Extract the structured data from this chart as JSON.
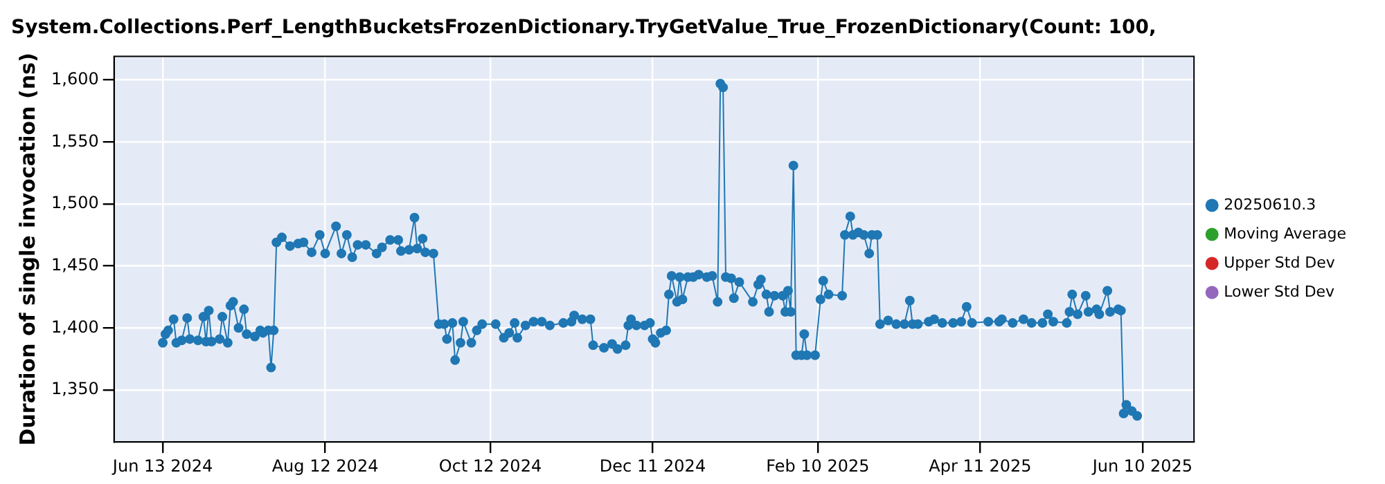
{
  "chart_data": {
    "type": "line",
    "title": "System.Collections.Perf_LengthBucketsFrozenDictionary.TryGetValue_True_FrozenDictionary(Count: 100,",
    "ylabel": "Duration of single invocation (ns)",
    "x": [
      "2024-06-13",
      "2024-06-14",
      "2024-06-15",
      "2024-06-17",
      "2024-06-18",
      "2024-06-20",
      "2024-06-22",
      "2024-06-23",
      "2024-06-26",
      "2024-06-28",
      "2024-06-29",
      "2024-06-30",
      "2024-07-01",
      "2024-07-04",
      "2024-07-05",
      "2024-07-07",
      "2024-07-08",
      "2024-07-09",
      "2024-07-11",
      "2024-07-13",
      "2024-07-14",
      "2024-07-17",
      "2024-07-19",
      "2024-07-20",
      "2024-07-22",
      "2024-07-23",
      "2024-07-24",
      "2024-07-25",
      "2024-07-27",
      "2024-07-30",
      "2024-08-02",
      "2024-08-04",
      "2024-08-07",
      "2024-08-10",
      "2024-08-12",
      "2024-08-16",
      "2024-08-18",
      "2024-08-20",
      "2024-08-22",
      "2024-08-24",
      "2024-08-27",
      "2024-08-31",
      "2024-09-02",
      "2024-09-05",
      "2024-09-08",
      "2024-09-09",
      "2024-09-12",
      "2024-09-14",
      "2024-09-15",
      "2024-09-17",
      "2024-09-18",
      "2024-09-21",
      "2024-09-23",
      "2024-09-25",
      "2024-09-26",
      "2024-09-28",
      "2024-09-29",
      "2024-10-01",
      "2024-10-02",
      "2024-10-05",
      "2024-10-07",
      "2024-10-09",
      "2024-10-14",
      "2024-10-17",
      "2024-10-19",
      "2024-10-21",
      "2024-10-22",
      "2024-10-25",
      "2024-10-28",
      "2024-10-31",
      "2024-11-03",
      "2024-11-08",
      "2024-11-11",
      "2024-11-12",
      "2024-11-15",
      "2024-11-18",
      "2024-11-19",
      "2024-11-23",
      "2024-11-26",
      "2024-11-28",
      "2024-12-01",
      "2024-12-02",
      "2024-12-03",
      "2024-12-05",
      "2024-12-08",
      "2024-12-10",
      "2024-12-11",
      "2024-12-12",
      "2024-12-14",
      "2024-12-16",
      "2024-12-17",
      "2024-12-18",
      "2024-12-20",
      "2024-12-21",
      "2024-12-22",
      "2024-12-24",
      "2024-12-26",
      "2024-12-28",
      "2024-12-31",
      "2025-01-02",
      "2025-01-04",
      "2025-01-05",
      "2025-01-06",
      "2025-01-07",
      "2025-01-09",
      "2025-01-10",
      "2025-01-12",
      "2025-01-17",
      "2025-01-19",
      "2025-01-20",
      "2025-01-22",
      "2025-01-23",
      "2025-01-25",
      "2025-01-28",
      "2025-01-29",
      "2025-01-30",
      "2025-01-31",
      "2025-02-01",
      "2025-02-02",
      "2025-02-04",
      "2025-02-05",
      "2025-02-06",
      "2025-02-09",
      "2025-02-11",
      "2025-02-12",
      "2025-02-14",
      "2025-02-19",
      "2025-02-20",
      "2025-02-22",
      "2025-02-23",
      "2025-02-25",
      "2025-02-27",
      "2025-03-01",
      "2025-03-02",
      "2025-03-04",
      "2025-03-05",
      "2025-03-08",
      "2025-03-11",
      "2025-03-14",
      "2025-03-16",
      "2025-03-17",
      "2025-03-19",
      "2025-03-23",
      "2025-03-25",
      "2025-03-28",
      "2025-04-01",
      "2025-04-04",
      "2025-04-06",
      "2025-04-08",
      "2025-04-14",
      "2025-04-18",
      "2025-04-19",
      "2025-04-23",
      "2025-04-27",
      "2025-04-30",
      "2025-05-04",
      "2025-05-06",
      "2025-05-08",
      "2025-05-13",
      "2025-05-14",
      "2025-05-15",
      "2025-05-17",
      "2025-05-20",
      "2025-05-21",
      "2025-05-24",
      "2025-05-25",
      "2025-05-28",
      "2025-05-29",
      "2025-06-01",
      "2025-06-02",
      "2025-06-03",
      "2025-06-04",
      "2025-06-06",
      "2025-06-08"
    ],
    "series": [
      {
        "name": "20250610.3",
        "color": "#1f77b4",
        "values": [
          1388,
          1395,
          1398,
          1407,
          1388,
          1390,
          1408,
          1391,
          1390,
          1409,
          1389,
          1414,
          1389,
          1391,
          1409,
          1388,
          1418,
          1421,
          1400,
          1415,
          1395,
          1393,
          1398,
          1396,
          1398,
          1368,
          1398,
          1469,
          1473,
          1466,
          1468,
          1469,
          1461,
          1475,
          1460,
          1482,
          1460,
          1475,
          1457,
          1467,
          1467,
          1460,
          1465,
          1471,
          1471,
          1462,
          1463,
          1489,
          1464,
          1472,
          1461,
          1460,
          1403,
          1403,
          1391,
          1404,
          1374,
          1388,
          1405,
          1388,
          1398,
          1403,
          1403,
          1392,
          1396,
          1404,
          1392,
          1402,
          1405,
          1405,
          1402,
          1404,
          1405,
          1410,
          1407,
          1407,
          1386,
          1384,
          1387,
          1383,
          1386,
          1402,
          1407,
          1402,
          1402,
          1404,
          1391,
          1388,
          1396,
          1398,
          1427,
          1442,
          1421,
          1441,
          1423,
          1441,
          1441,
          1443,
          1441,
          1442,
          1421,
          1597,
          1594,
          1441,
          1440,
          1424,
          1437,
          1421,
          1435,
          1439,
          1427,
          1413,
          1426,
          1426,
          1413,
          1430,
          1413,
          1531,
          1378,
          1378,
          1395,
          1378,
          1378,
          1423,
          1438,
          1427,
          1426,
          1475,
          1490,
          1475,
          1477,
          1475,
          1460,
          1475,
          1475,
          1403,
          1406,
          1403,
          1403,
          1422,
          1403,
          1403,
          1405,
          1407,
          1404,
          1404,
          1405,
          1417,
          1404,
          1405,
          1405,
          1407,
          1404,
          1407,
          1404,
          1404,
          1411,
          1405,
          1404,
          1413,
          1427,
          1411,
          1426,
          1413,
          1415,
          1411,
          1430,
          1413,
          1415,
          1414,
          1331,
          1338,
          1333,
          1329
        ]
      },
      {
        "name": "Moving Average",
        "color": "#2ca02c",
        "values": [
          null,
          null,
          null,
          null,
          null,
          null,
          null,
          null,
          null,
          null,
          null,
          null,
          null,
          null,
          null,
          null,
          null,
          null,
          null,
          null,
          null,
          null,
          null,
          null,
          null,
          null,
          null,
          null,
          null,
          null,
          null,
          null,
          null,
          null,
          null,
          null,
          null,
          null,
          null,
          null,
          null,
          null,
          null,
          null,
          null,
          null,
          null,
          null,
          null,
          null,
          null,
          null,
          null,
          null,
          null,
          null,
          null,
          null,
          null,
          null,
          null,
          null,
          null,
          null,
          null,
          null,
          null,
          null,
          null,
          null,
          null,
          null,
          null,
          null,
          null,
          null,
          null,
          null,
          null,
          null,
          null,
          null,
          null,
          null,
          null,
          null,
          null,
          null,
          null,
          null,
          null,
          null,
          null,
          null,
          null,
          null,
          null,
          null,
          null,
          null,
          null,
          null,
          null,
          null,
          null,
          null,
          null,
          null,
          null,
          null,
          null,
          null,
          null,
          null,
          null,
          null,
          null,
          null,
          null,
          null,
          null,
          null,
          null,
          null,
          null,
          null,
          null,
          null,
          null,
          null,
          null,
          null,
          null,
          null,
          null,
          null,
          null,
          null,
          null,
          null,
          null,
          null,
          null,
          null,
          null,
          null,
          null,
          null,
          null,
          null,
          null,
          null,
          null,
          null,
          null,
          null,
          null,
          null,
          null,
          null,
          null,
          null,
          null,
          null,
          null,
          null,
          null,
          null,
          null,
          null,
          null,
          null,
          null,
          null
        ]
      },
      {
        "name": "Upper Std Dev",
        "color": "#d62728",
        "values": [
          null,
          null,
          null,
          null,
          null,
          null,
          null,
          null,
          null,
          null,
          null,
          null,
          null,
          null,
          null,
          null,
          null,
          null,
          null,
          null,
          null,
          null,
          null,
          null,
          null,
          null,
          null,
          null,
          null,
          null,
          null,
          null,
          null,
          null,
          null,
          null,
          null,
          null,
          null,
          null,
          null,
          null,
          null,
          null,
          null,
          null,
          null,
          null,
          null,
          null,
          null,
          null,
          null,
          null,
          null,
          null,
          null,
          null,
          null,
          null,
          null,
          null,
          null,
          null,
          null,
          null,
          null,
          null,
          null,
          null,
          null,
          null,
          null,
          null,
          null,
          null,
          null,
          null,
          null,
          null,
          null,
          null,
          null,
          null,
          null,
          null,
          null,
          null,
          null,
          null,
          null,
          null,
          null,
          null,
          null,
          null,
          null,
          null,
          null,
          null,
          null,
          null,
          null,
          null,
          null,
          null,
          null,
          null,
          null,
          null,
          null,
          null,
          null,
          null,
          null,
          null,
          null,
          null,
          null,
          null,
          null,
          null,
          null,
          null,
          null,
          null,
          null,
          null,
          null,
          null,
          null,
          null,
          null,
          null,
          null,
          null,
          null,
          null,
          null,
          null,
          null,
          null,
          null,
          null,
          null,
          null,
          null,
          null,
          null,
          null,
          null,
          null,
          null,
          null,
          null,
          null,
          null,
          null,
          null,
          null,
          null,
          null,
          null,
          null,
          null,
          null,
          null,
          null,
          null,
          null,
          null,
          null,
          null,
          null
        ]
      },
      {
        "name": "Lower Std Dev",
        "color": "#9467bd",
        "values": [
          null,
          null,
          null,
          null,
          null,
          null,
          null,
          null,
          null,
          null,
          null,
          null,
          null,
          null,
          null,
          null,
          null,
          null,
          null,
          null,
          null,
          null,
          null,
          null,
          null,
          null,
          null,
          null,
          null,
          null,
          null,
          null,
          null,
          null,
          null,
          null,
          null,
          null,
          null,
          null,
          null,
          null,
          null,
          null,
          null,
          null,
          null,
          null,
          null,
          null,
          null,
          null,
          null,
          null,
          null,
          null,
          null,
          null,
          null,
          null,
          null,
          null,
          null,
          null,
          null,
          null,
          null,
          null,
          null,
          null,
          null,
          null,
          null,
          null,
          null,
          null,
          null,
          null,
          null,
          null,
          null,
          null,
          null,
          null,
          null,
          null,
          null,
          null,
          null,
          null,
          null,
          null,
          null,
          null,
          null,
          null,
          null,
          null,
          null,
          null,
          null,
          null,
          null,
          null,
          null,
          null,
          null,
          null,
          null,
          null,
          null,
          null,
          null,
          null,
          null,
          null,
          null,
          null,
          null,
          null,
          null,
          null,
          null,
          null,
          null,
          null,
          null,
          null,
          null,
          null,
          null,
          null,
          null,
          null,
          null,
          null,
          null,
          null,
          null,
          null,
          null,
          null,
          null,
          null,
          null,
          null,
          null,
          null,
          null,
          null,
          null,
          null,
          null,
          null,
          null,
          null,
          null,
          null,
          null,
          null,
          null,
          null,
          null,
          null,
          null,
          null,
          null,
          null,
          null,
          null,
          null,
          null,
          null,
          null
        ]
      }
    ],
    "xlim": [
      "2024-05-26",
      "2025-06-29"
    ],
    "xticks": [
      {
        "value": "2024-06-13",
        "label": "Jun 13 2024"
      },
      {
        "value": "2024-08-12",
        "label": "Aug 12 2024"
      },
      {
        "value": "2024-10-12",
        "label": "Oct 12 2024"
      },
      {
        "value": "2024-12-11",
        "label": "Dec 11 2024"
      },
      {
        "value": "2025-02-10",
        "label": "Feb 10 2025"
      },
      {
        "value": "2025-04-11",
        "label": "Apr 11 2025"
      },
      {
        "value": "2025-06-10",
        "label": "Jun 10 2025"
      }
    ],
    "ylim": [
      1308,
      1619
    ],
    "yticks": [
      {
        "value": 1350,
        "label": "1,350"
      },
      {
        "value": 1400,
        "label": "1,400"
      },
      {
        "value": 1450,
        "label": "1,450"
      },
      {
        "value": 1500,
        "label": "1,500"
      },
      {
        "value": 1550,
        "label": "1,550"
      },
      {
        "value": 1600,
        "label": "1,600"
      }
    ],
    "grid": true,
    "legend": "right",
    "marker": "circle",
    "line_style": "solid"
  }
}
